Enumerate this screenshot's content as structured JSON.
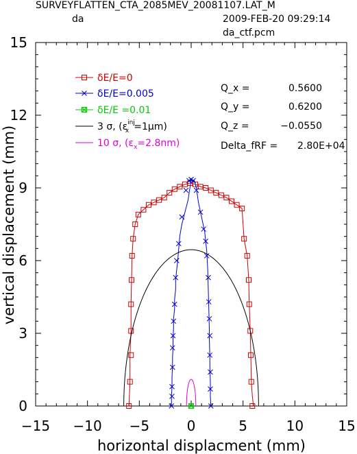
{
  "header": {
    "title": "SURVEYFLATTEN_CTA_2085MEV_20081107.LAT_M",
    "left_label": "da",
    "timestamp": "2009-FEB-20  09:29:14",
    "file": "da_ctf.pcm"
  },
  "chart_data": {
    "type": "line",
    "xlabel": "horizontal displacment (mm)",
    "ylabel": "vertical displacement (mm)",
    "xlim": [
      -15,
      15
    ],
    "ylim": [
      0,
      15
    ],
    "xticks": [
      -15,
      -10,
      -5,
      0,
      5,
      10,
      15
    ],
    "yticks": [
      0,
      3,
      6,
      9,
      12,
      15
    ],
    "xtick_labels": [
      "−15",
      "−10",
      "−5",
      "0",
      "5",
      "10",
      "15"
    ],
    "ytick_labels": [
      "0",
      "3",
      "6",
      "9",
      "12",
      "15"
    ],
    "grid": false,
    "legend_position": "top-left",
    "series": [
      {
        "name": "δE/E=0",
        "color": "#d00000",
        "marker": "square",
        "x": [
          -6.0,
          -5.9,
          -5.9,
          -5.8,
          -5.8,
          -5.75,
          -5.7,
          -5.6,
          -5.4,
          -5.1,
          -4.6,
          -4.1,
          -3.6,
          -3.1,
          -2.6,
          -2.1,
          -1.6,
          -1.1,
          -0.6,
          -0.1,
          0.4,
          0.9,
          1.4,
          1.9,
          2.4,
          2.9,
          3.4,
          3.9,
          4.4,
          4.9,
          5.1,
          5.4,
          5.55,
          5.6,
          5.7,
          5.75,
          5.8,
          5.9,
          6.0
        ],
        "y": [
          0.0,
          1.0,
          2.1,
          3.1,
          4.2,
          5.2,
          6.2,
          6.9,
          7.5,
          7.9,
          8.1,
          8.3,
          8.4,
          8.5,
          8.6,
          8.8,
          8.95,
          9.05,
          9.15,
          9.2,
          9.15,
          9.05,
          9.0,
          8.9,
          8.8,
          8.7,
          8.6,
          8.45,
          8.3,
          8.15,
          6.9,
          6.2,
          5.2,
          4.2,
          3.1,
          2.1,
          1.0,
          0.4,
          0.0
        ],
        "marker_x": [
          -6.0,
          -5.9,
          -5.8,
          -5.8,
          -5.8,
          -5.75,
          -5.7,
          -5.6,
          -5.4,
          -5.1,
          -4.6,
          -4.1,
          -3.6,
          -3.1,
          -2.6,
          -2.1,
          -1.6,
          -1.1,
          -0.6,
          -0.1,
          0.4,
          0.9,
          1.4,
          1.9,
          2.4,
          2.9,
          3.4,
          3.9,
          4.4,
          4.9,
          5.1,
          5.4,
          5.55,
          5.6,
          5.7,
          5.75,
          5.8,
          5.9
        ],
        "marker_y": [
          0.0,
          1.0,
          2.1,
          3.1,
          4.2,
          5.2,
          6.2,
          6.9,
          7.5,
          7.9,
          8.1,
          8.3,
          8.4,
          8.5,
          8.6,
          8.8,
          8.95,
          9.05,
          9.15,
          9.2,
          9.15,
          9.05,
          9.0,
          8.9,
          8.8,
          8.7,
          8.6,
          8.45,
          8.3,
          8.15,
          6.9,
          6.2,
          5.2,
          4.2,
          3.1,
          2.1,
          1.0,
          0.0
        ]
      },
      {
        "name": "δE/E=0.005",
        "color": "#0000cc",
        "marker": "x",
        "x": [
          -1.9,
          -1.9,
          -1.85,
          -1.85,
          -1.8,
          -1.8,
          -1.75,
          -1.75,
          -1.7,
          -1.7,
          -1.6,
          -1.6,
          -1.5,
          -1.5,
          -1.4,
          -1.3,
          -1.2,
          -1.1,
          -0.9,
          -0.6,
          -0.3,
          0.0,
          0.3,
          0.5,
          0.7,
          0.9,
          1.1,
          1.3,
          1.4,
          1.5,
          1.6,
          1.65,
          1.7,
          1.75,
          1.75,
          1.8,
          1.8,
          1.85,
          1.85,
          1.9
        ],
        "y": [
          0.0,
          0.4,
          0.8,
          1.2,
          1.6,
          2.0,
          2.4,
          2.8,
          3.2,
          3.6,
          4.0,
          4.4,
          4.8,
          5.2,
          5.6,
          6.0,
          6.5,
          7.0,
          7.5,
          8.0,
          8.5,
          9.35,
          9.3,
          9.0,
          8.4,
          8.0,
          7.6,
          7.2,
          6.8,
          6.4,
          5.6,
          4.8,
          4.0,
          3.2,
          2.8,
          2.0,
          1.6,
          1.0,
          0.4,
          0.0
        ],
        "marker_x": [
          -1.9,
          -1.85,
          -1.85,
          -1.8,
          -1.8,
          -1.75,
          -1.7,
          -1.6,
          -1.5,
          -1.4,
          -1.2,
          -0.9,
          -0.5,
          -0.2,
          0.0,
          0.2,
          0.5,
          0.9,
          1.2,
          1.4,
          1.5,
          1.65,
          1.7,
          1.75,
          1.8,
          1.8,
          1.85,
          1.85,
          1.9
        ],
        "marker_y": [
          0.0,
          0.4,
          0.8,
          1.6,
          2.4,
          2.9,
          3.5,
          4.2,
          5.3,
          6.0,
          6.7,
          7.8,
          8.9,
          9.3,
          9.35,
          9.3,
          8.9,
          8.0,
          7.3,
          6.8,
          6.2,
          5.3,
          4.3,
          3.6,
          2.9,
          2.1,
          1.4,
          0.7,
          0.0
        ]
      },
      {
        "name": "δE/E =0.01",
        "color": "#00cc00",
        "marker": "square-x",
        "x": [
          0.0
        ],
        "y": [
          0.0
        ],
        "marker_x": [
          0.0
        ],
        "marker_y": [
          0.0
        ]
      },
      {
        "name": "3 σ, (εx inj=1µm)",
        "color": "#000000",
        "marker": "none",
        "shape": "half-ellipse",
        "a": 6.5,
        "b": 6.45
      },
      {
        "name": "10 σ, (εx=2.8nm)",
        "color": "#dd00dd",
        "marker": "none",
        "shape": "half-ellipse",
        "a": 0.45,
        "b": 1.1
      }
    ],
    "legend": {
      "entries": [
        {
          "pre": "δE/E=0",
          "sub": "",
          "sup": "",
          "post": ""
        },
        {
          "pre": "δE/E=0.005",
          "sub": "",
          "sup": "",
          "post": ""
        },
        {
          "pre": "δE/E =0.01",
          "sub": "",
          "sup": "",
          "post": ""
        },
        {
          "pre": "3  σ,  (ε",
          "sub": "x",
          "sup": "inj",
          "post": "=1µm)"
        },
        {
          "pre": "10  σ,  (ε",
          "sub": "x",
          "sup": "",
          "post": "=2.8nm)"
        }
      ]
    },
    "annotations": [
      {
        "label": "Q_x  =",
        "value": "0.5600"
      },
      {
        "label": "Q_y  =",
        "value": "0.6200"
      },
      {
        "label": "Q_z  =",
        "value": "−0.0550"
      },
      {
        "label": "Delta_fRF  =",
        "value": "2.80E+04"
      }
    ]
  }
}
